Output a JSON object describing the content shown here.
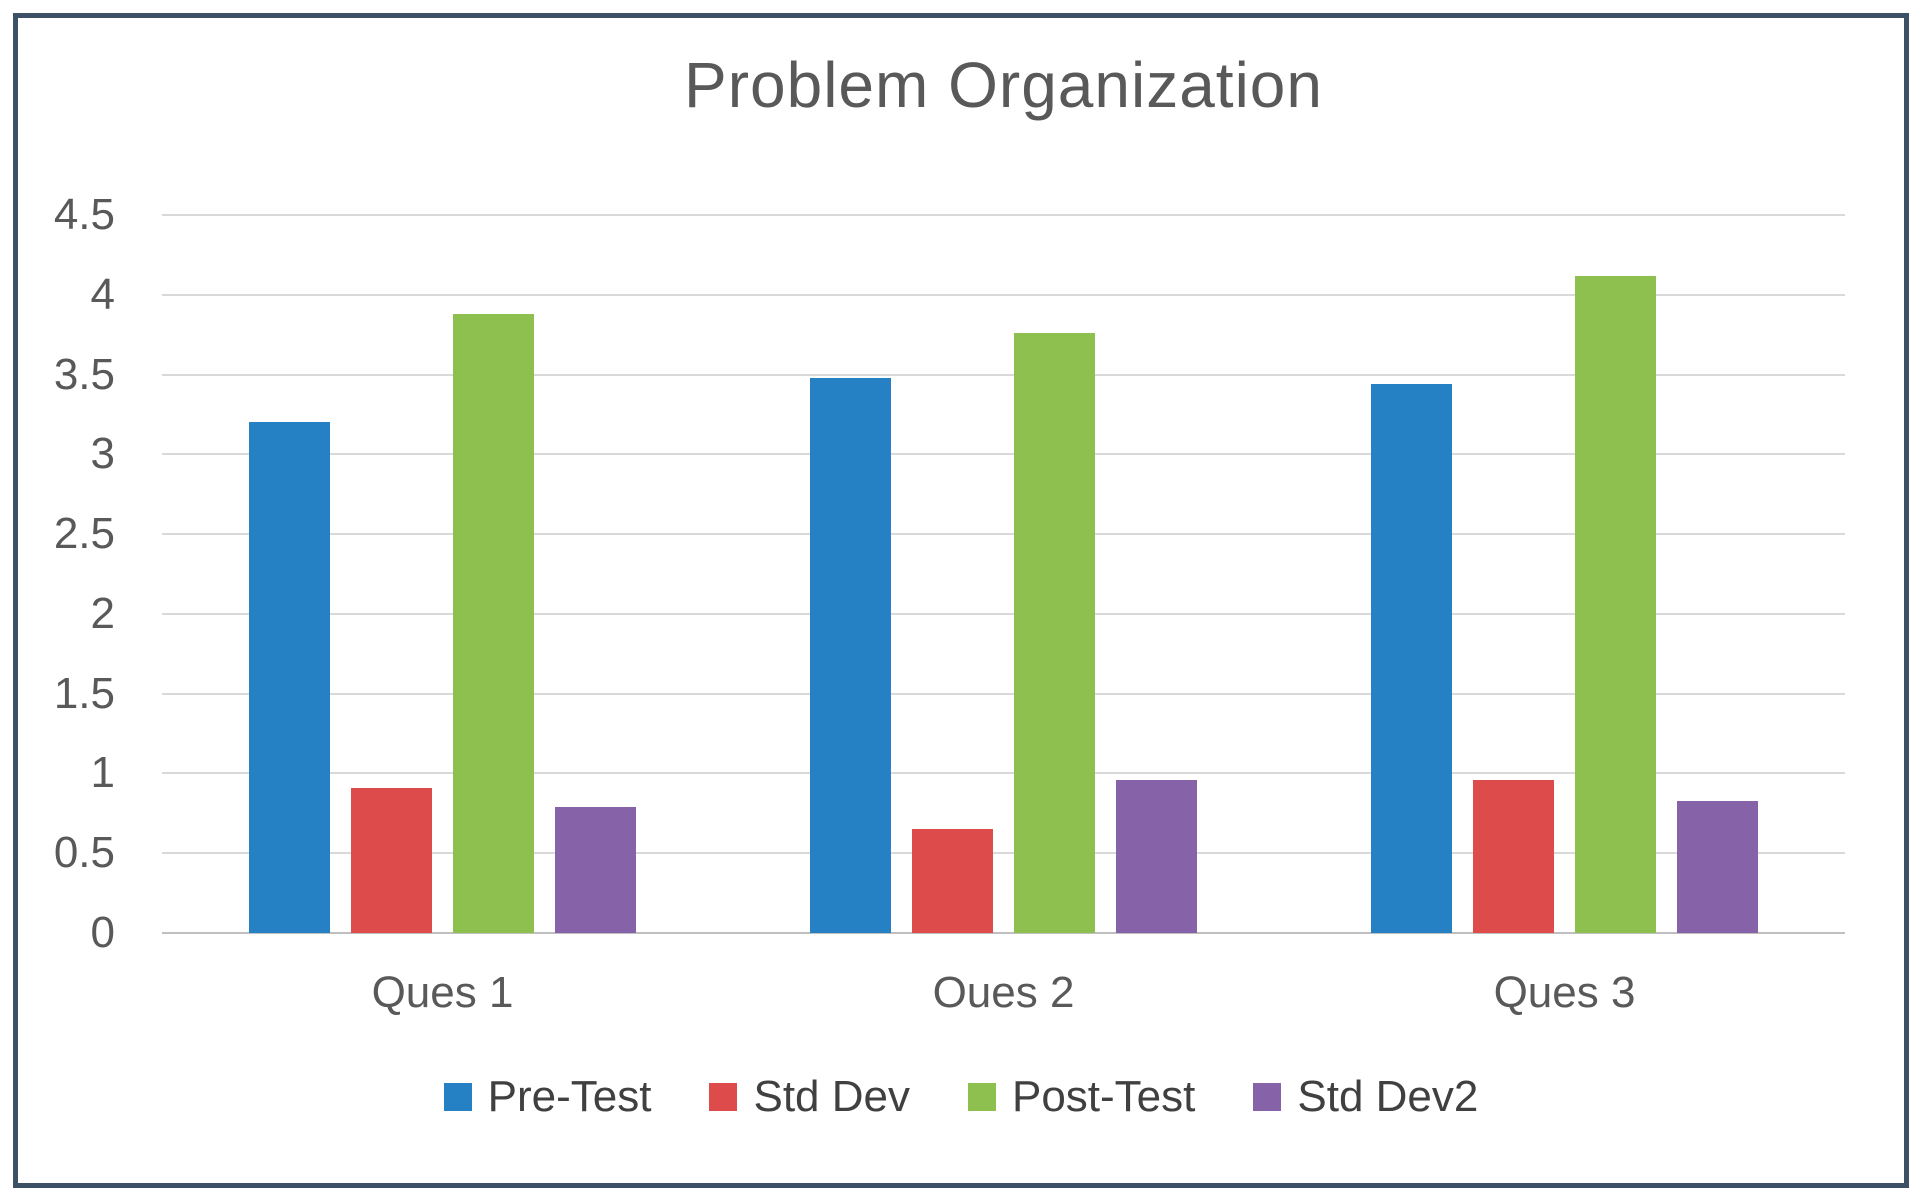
{
  "frame": {
    "border_color": "#3d5166"
  },
  "chart_data": {
    "type": "bar",
    "title": "Problem Organization",
    "categories": [
      "Ques 1",
      "Oues 2",
      "Ques 3"
    ],
    "series": [
      {
        "name": "Pre-Test",
        "color": "#2581c4",
        "values": [
          3.2,
          3.48,
          3.44
        ]
      },
      {
        "name": "Std Dev",
        "color": "#de4b4b",
        "values": [
          0.91,
          0.65,
          0.96
        ]
      },
      {
        "name": "Post-Test",
        "color": "#8dc04f",
        "values": [
          3.88,
          3.76,
          4.12
        ]
      },
      {
        "name": "Std Dev2",
        "color": "#8662a8",
        "values": [
          0.79,
          0.96,
          0.83
        ]
      }
    ],
    "xlabel": "",
    "ylabel": "",
    "ylim": [
      0,
      4.5
    ],
    "yticks": [
      0,
      0.5,
      1,
      1.5,
      2,
      2.5,
      3,
      3.5,
      4,
      4.5
    ],
    "grid": true,
    "legend_position": "bottom",
    "text_color": "#595959",
    "legend_text_color": "#404040",
    "gridline_color": "#d9d9d9",
    "baseline_color": "#bfbfbf"
  }
}
